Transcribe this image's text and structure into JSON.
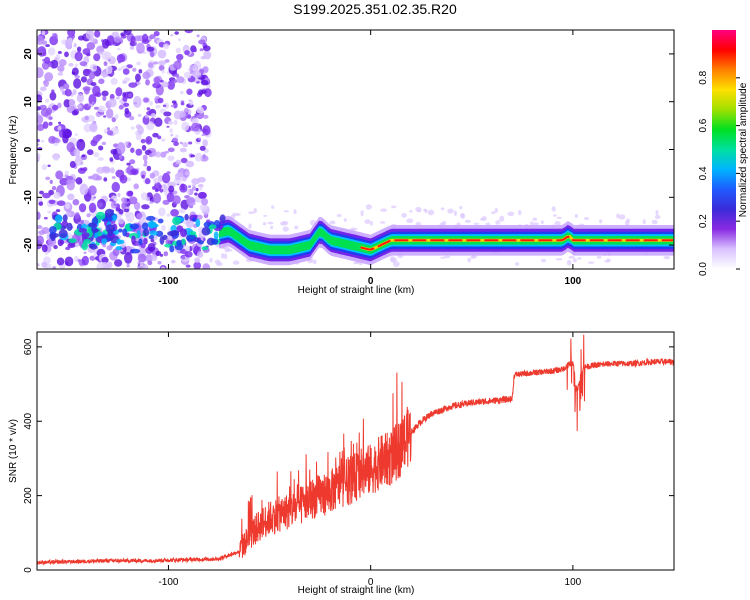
{
  "title": "S199.2025.351.02.35.R20",
  "chart_data": [
    {
      "type": "heatmap",
      "xlabel": "Height of straight line (km)",
      "ylabel": "Frequency (Hz)",
      "xlim": [
        -165,
        150
      ],
      "ylim": [
        -25,
        25
      ],
      "xticks": [
        -100,
        0,
        100
      ],
      "yticks": [
        -20,
        -10,
        0,
        10,
        20
      ],
      "colorbar": {
        "label": "Normalized spectral amplitude",
        "range": [
          0,
          1
        ],
        "ticks": [
          "0.0",
          "0.2",
          "0.4",
          "0.6",
          "0.8"
        ],
        "colors": [
          "#ffffff",
          "#d9c2ff",
          "#8a2be2",
          "#3b2bd9",
          "#1f5bff",
          "#00b4ff",
          "#00e0a0",
          "#00e020",
          "#a0e000",
          "#ffe000",
          "#ff8000",
          "#ff0000",
          "#ff0080"
        ]
      },
      "ridge": {
        "x": [
          -150,
          -140,
          -130,
          -120,
          -110,
          -100,
          -90,
          -80,
          -70,
          -60,
          -50,
          -40,
          -30,
          -25,
          -20,
          -10,
          0,
          10,
          20,
          40,
          60,
          80,
          95,
          98,
          100,
          110,
          130,
          150
        ],
        "freq": [
          -17,
          -18,
          -16,
          -19,
          -17,
          -18,
          -17,
          -18,
          -17,
          -20,
          -21,
          -21,
          -20,
          -17,
          -19,
          -20,
          -21,
          -19,
          -19,
          -19,
          -19,
          -19,
          -19,
          -18,
          -19,
          -19,
          -19,
          -19
        ]
      },
      "scatter_region": {
        "x_range": [
          -165,
          -80
        ],
        "freq_range": [
          -25,
          25
        ]
      }
    },
    {
      "type": "line",
      "xlabel": "Height of straight line (km)",
      "ylabel": "SNR (10 * v/v)",
      "xlim": [
        -165,
        150
      ],
      "ylim": [
        0,
        640
      ],
      "xticks": [
        -100,
        0,
        100
      ],
      "yticks": [
        0,
        200,
        400,
        600
      ],
      "color": "#ee3a2e",
      "x": [
        -165,
        -150,
        -130,
        -110,
        -90,
        -75,
        -65,
        -60,
        -55,
        -50,
        -45,
        -40,
        -35,
        -30,
        -25,
        -20,
        -15,
        -10,
        -5,
        0,
        5,
        10,
        15,
        20,
        25,
        30,
        35,
        40,
        50,
        60,
        70,
        71,
        80,
        90,
        95,
        100,
        102,
        105,
        110,
        120,
        130,
        140,
        150
      ],
      "y": [
        20,
        22,
        25,
        25,
        28,
        30,
        50,
        90,
        120,
        140,
        150,
        160,
        170,
        190,
        200,
        210,
        230,
        240,
        260,
        270,
        290,
        300,
        330,
        370,
        400,
        420,
        430,
        440,
        450,
        455,
        460,
        525,
        530,
        535,
        540,
        560,
        480,
        545,
        550,
        555,
        555,
        560,
        560
      ]
    }
  ]
}
